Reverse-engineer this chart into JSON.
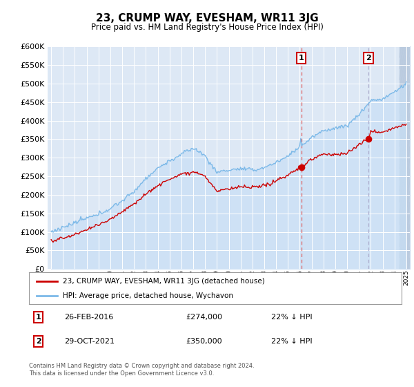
{
  "title": "23, CRUMP WAY, EVESHAM, WR11 3JG",
  "subtitle": "Price paid vs. HM Land Registry's House Price Index (HPI)",
  "ylim": [
    0,
    600000
  ],
  "ytick_values": [
    0,
    50000,
    100000,
    150000,
    200000,
    250000,
    300000,
    350000,
    400000,
    450000,
    500000,
    550000,
    600000
  ],
  "hpi_color": "#7cb9e8",
  "hpi_fill_color": "#c8dff5",
  "price_color": "#cc0000",
  "marker1_x": 2016.12,
  "marker1_price": 274000,
  "marker1_hpi": 352000,
  "marker2_x": 2021.83,
  "marker2_price": 350000,
  "marker2_hpi": 448000,
  "legend_property": "23, CRUMP WAY, EVESHAM, WR11 3JG (detached house)",
  "legend_hpi": "HPI: Average price, detached house, Wychavon",
  "footer": "Contains HM Land Registry data © Crown copyright and database right 2024.\nThis data is licensed under the Open Government Licence v3.0.",
  "background_color": "#dde8f5",
  "grid_color": "white",
  "hatch_bg": "#c8d8ee"
}
